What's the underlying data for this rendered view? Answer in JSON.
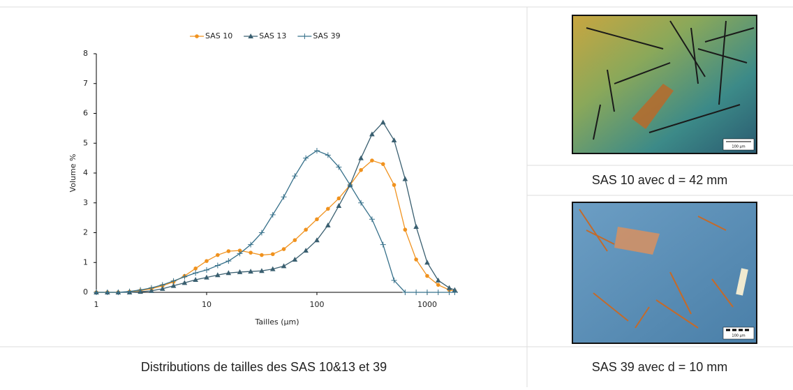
{
  "chart_data": {
    "type": "line",
    "x_label": "Tailles (µm)",
    "y_label": "Volume %",
    "x": [
      1,
      1.26,
      1.58,
      2,
      2.51,
      3.16,
      3.98,
      5.01,
      6.31,
      7.94,
      10,
      12.6,
      15.8,
      20,
      25.1,
      31.6,
      39.8,
      50.1,
      63.1,
      79.4,
      100,
      126,
      158,
      200,
      251,
      316,
      398,
      501,
      631,
      794,
      1000,
      1259,
      1585,
      1778
    ],
    "series": [
      {
        "name": "SAS 10",
        "color": "#f0921e",
        "marker": "circle",
        "values": [
          0,
          0,
          0,
          0.02,
          0.06,
          0.12,
          0.22,
          0.35,
          0.55,
          0.8,
          1.05,
          1.25,
          1.38,
          1.4,
          1.33,
          1.25,
          1.28,
          1.45,
          1.75,
          2.1,
          2.45,
          2.8,
          3.15,
          3.6,
          4.1,
          4.42,
          4.3,
          3.6,
          2.1,
          1.1,
          0.55,
          0.25,
          0.08,
          0.05
        ]
      },
      {
        "name": "SAS 13",
        "color": "#3a5f70",
        "marker": "triangle",
        "values": [
          0,
          0,
          0,
          0,
          0.02,
          0.05,
          0.12,
          0.22,
          0.32,
          0.42,
          0.5,
          0.58,
          0.65,
          0.68,
          0.7,
          0.72,
          0.78,
          0.88,
          1.1,
          1.4,
          1.75,
          2.25,
          2.9,
          3.6,
          4.5,
          5.3,
          5.7,
          5.1,
          3.8,
          2.2,
          1.0,
          0.4,
          0.15,
          0.08
        ]
      },
      {
        "name": "SAS 39",
        "color": "#36708a",
        "marker": "plus",
        "values": [
          0,
          0,
          0,
          0.03,
          0.08,
          0.15,
          0.25,
          0.38,
          0.52,
          0.65,
          0.75,
          0.9,
          1.05,
          1.3,
          1.6,
          2.0,
          2.6,
          3.2,
          3.9,
          4.5,
          4.75,
          4.6,
          4.2,
          3.6,
          3.0,
          2.45,
          1.6,
          0.4,
          0,
          0,
          0,
          0,
          0,
          0
        ]
      }
    ],
    "xlim": [
      1,
      1900
    ],
    "xticks": [
      1,
      10,
      100,
      1000
    ],
    "x_log": true,
    "ylim": [
      0,
      8
    ],
    "yticks": [
      0,
      1,
      2,
      3,
      4,
      5,
      6,
      7,
      8
    ],
    "grid": false,
    "legend": "top"
  },
  "chart_caption": "Distributions de tailles des SAS 10&13 et 39",
  "images": [
    {
      "scale_bar": "100 µm",
      "caption": "SAS 10 avec d = 42 mm"
    },
    {
      "scale_bar": "100 µm",
      "caption": "SAS 39 avec d = 10 mm"
    }
  ]
}
